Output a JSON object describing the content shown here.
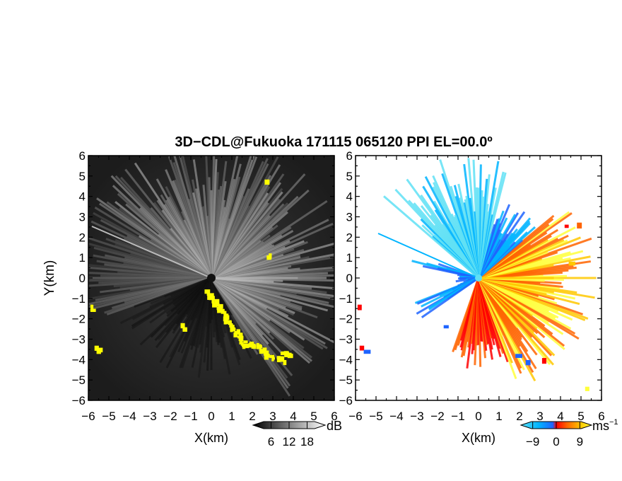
{
  "title": "3D−CDL@Fukuoka 171115 065120 PPI EL=00.0º",
  "ylabel": "Y(km)",
  "chart_data": [
    {
      "type": "heatmap",
      "name": "reflectivity",
      "xlabel": "X(km)",
      "ylabel": "Y(km)",
      "xlim": [
        -6,
        6
      ],
      "ylim": [
        -6,
        6
      ],
      "xticks": [
        "−6",
        "−5",
        "−4",
        "−3",
        "−2",
        "−1",
        "0",
        "1",
        "2",
        "3",
        "4",
        "5",
        "6"
      ],
      "yticks": [
        "6",
        "5",
        "4",
        "3",
        "2",
        "1",
        "0",
        "−1",
        "−2",
        "−3",
        "−4",
        "−5",
        "−6"
      ],
      "colorbar": {
        "unit": "dB",
        "ticks": [
          "6",
          "12",
          "18"
        ],
        "range": [
          0,
          24
        ],
        "colors": [
          "#000000",
          "#ffffff"
        ]
      },
      "background_color": "#262626",
      "overlay_color": "#ffff00"
    },
    {
      "type": "heatmap",
      "name": "doppler-velocity",
      "xlabel": "X(km)",
      "ylabel": "",
      "xlim": [
        -6,
        6
      ],
      "ylim": [
        -6,
        6
      ],
      "xticks": [
        "−6",
        "−5",
        "−4",
        "−3",
        "−2",
        "−1",
        "0",
        "1",
        "2",
        "3",
        "4",
        "5",
        "6"
      ],
      "yticks": [
        "6",
        "5",
        "4",
        "3",
        "2",
        "1",
        "0",
        "−1",
        "−2",
        "−3",
        "−4",
        "−5",
        "−6"
      ],
      "colorbar": {
        "unit": "ms",
        "unit_sup": "−1",
        "ticks": [
          "−9",
          "0",
          "9"
        ],
        "range": [
          -13.5,
          13.5
        ],
        "colors": [
          "#5fe0f5",
          "#00b4ff",
          "#1e64ff",
          "#ff0000",
          "#ff6400",
          "#ffc800",
          "#ffff3c"
        ]
      },
      "background_color": "#ffffff"
    }
  ]
}
